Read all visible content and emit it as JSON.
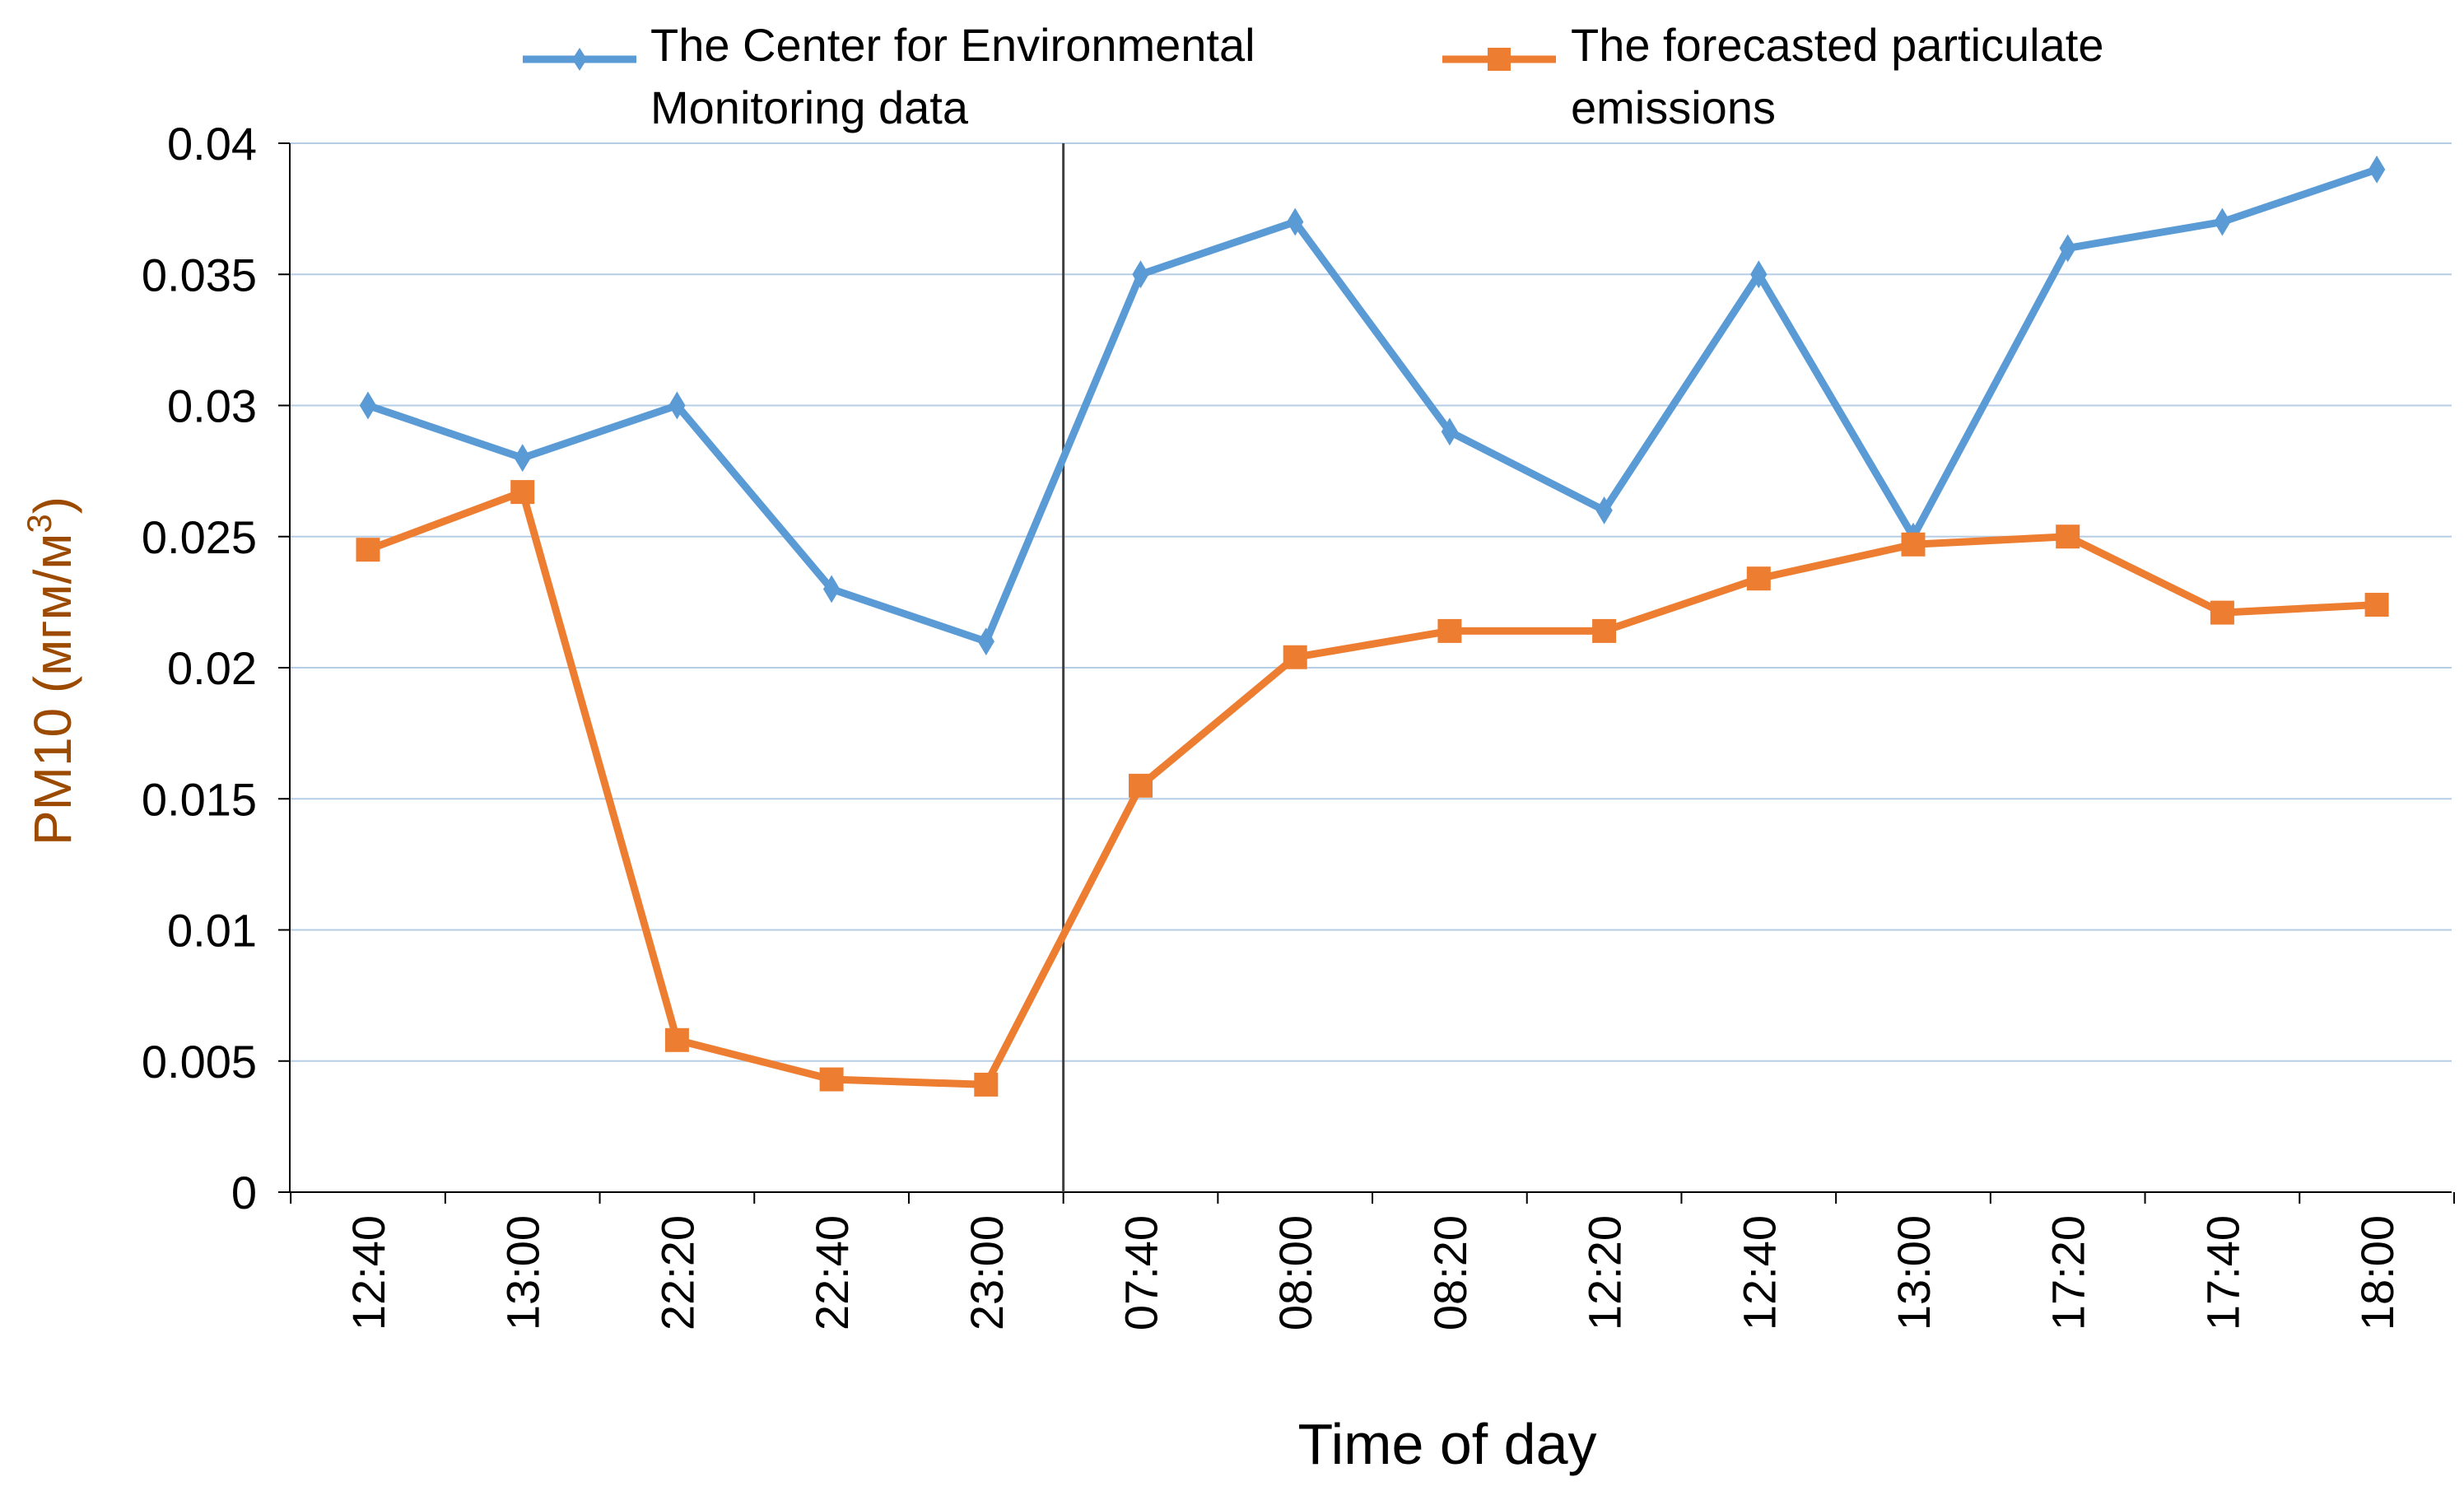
{
  "chart_data": {
    "type": "line",
    "title": "",
    "xlabel": "Time of day",
    "ylabel": "PM10 (мгм/м³)",
    "ylabel_main": "PM10 (мгм/м",
    "ylabel_sup": "3",
    "ylabel_close": ")",
    "ylim": [
      0,
      0.04
    ],
    "yticks": [
      0,
      0.005,
      0.01,
      0.015,
      0.02,
      0.025,
      0.03,
      0.035,
      0.04
    ],
    "ytick_labels": [
      "0",
      "0.005",
      "0.01",
      "0.015",
      "0.02",
      "0.025",
      "0.03",
      "0.035",
      "0.04"
    ],
    "grid": true,
    "legend_position": "top",
    "divider_after_index": 4,
    "categories": [
      "12:40",
      "13:00",
      "22:20",
      "22:40",
      "23:00",
      "07:40",
      "08:00",
      "08:20",
      "12:20",
      "12:40",
      "13:00",
      "17:20",
      "17:40",
      "18:00"
    ],
    "series": [
      {
        "name": "The Center for Environmental Monitoring data",
        "legend_lines": [
          "The Center for Environmental",
          "Monitoring data"
        ],
        "color": "#5b9bd5",
        "marker": "diamond",
        "values": [
          0.03,
          0.028,
          0.03,
          0.023,
          0.021,
          0.035,
          0.037,
          0.029,
          0.026,
          0.035,
          0.025,
          0.036,
          0.037,
          0.039
        ]
      },
      {
        "name": "The forecasted particulate emissions",
        "legend_lines": [
          "The forecasted particulate",
          "emissions"
        ],
        "color": "#ed7d31",
        "marker": "square",
        "values": [
          0.0245,
          0.0267,
          0.0058,
          0.0043,
          0.0041,
          0.0155,
          0.0204,
          0.0214,
          0.0214,
          0.0234,
          0.0247,
          0.025,
          0.0221,
          0.0224
        ]
      }
    ]
  }
}
